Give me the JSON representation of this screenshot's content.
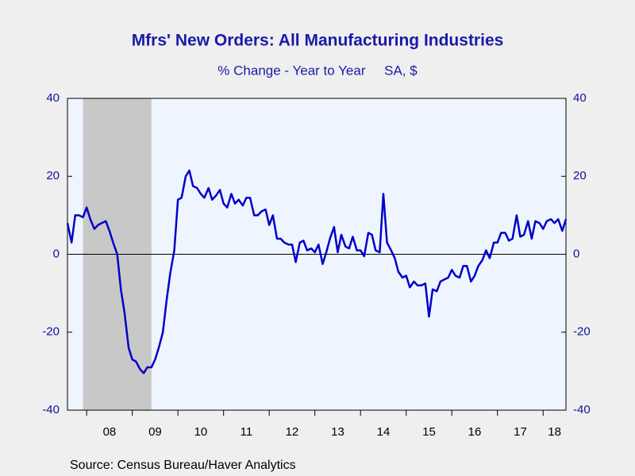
{
  "chart_data": {
    "type": "line",
    "title": "Mfrs' New Orders: All Manufacturing Industries",
    "subtitle": "% Change - Year to Year     SA, $",
    "source": "Source:  Census Bureau/Haver Analytics",
    "xlim": [
      2007.58,
      2018.5
    ],
    "ylim": [
      -40,
      40
    ],
    "yticks": [
      40,
      20,
      0,
      -20,
      -40
    ],
    "y2lim": [
      -40,
      40
    ],
    "y2ticks": [
      40,
      20,
      0,
      -20,
      -40
    ],
    "xticks": [
      {
        "value": 2008,
        "label": "08"
      },
      {
        "value": 2009,
        "label": "09"
      },
      {
        "value": 2010,
        "label": "10"
      },
      {
        "value": 2011,
        "label": "11"
      },
      {
        "value": 2012,
        "label": "12"
      },
      {
        "value": 2013,
        "label": "13"
      },
      {
        "value": 2014,
        "label": "14"
      },
      {
        "value": 2015,
        "label": "15"
      },
      {
        "value": 2016,
        "label": "16"
      },
      {
        "value": 2017,
        "label": "17"
      },
      {
        "value": 2018,
        "label": "18"
      }
    ],
    "recessions": [
      [
        2007.92,
        2009.42
      ]
    ],
    "recession_color": "#c8c8c8",
    "plot_background": "#eef5ff",
    "x": [
      2007.58,
      2007.67,
      2007.75,
      2007.83,
      2007.92,
      2008.0,
      2008.08,
      2008.17,
      2008.25,
      2008.33,
      2008.42,
      2008.5,
      2008.58,
      2008.67,
      2008.75,
      2008.83,
      2008.92,
      2009.0,
      2009.08,
      2009.17,
      2009.25,
      2009.33,
      2009.42,
      2009.5,
      2009.58,
      2009.67,
      2009.75,
      2009.83,
      2009.92,
      2010.0,
      2010.08,
      2010.17,
      2010.25,
      2010.33,
      2010.42,
      2010.5,
      2010.58,
      2010.67,
      2010.75,
      2010.83,
      2010.92,
      2011.0,
      2011.08,
      2011.17,
      2011.25,
      2011.33,
      2011.42,
      2011.5,
      2011.58,
      2011.67,
      2011.75,
      2011.83,
      2011.92,
      2012.0,
      2012.08,
      2012.17,
      2012.25,
      2012.33,
      2012.42,
      2012.5,
      2012.58,
      2012.67,
      2012.75,
      2012.83,
      2012.92,
      2013.0,
      2013.08,
      2013.17,
      2013.25,
      2013.33,
      2013.42,
      2013.5,
      2013.58,
      2013.67,
      2013.75,
      2013.83,
      2013.92,
      2014.0,
      2014.08,
      2014.17,
      2014.25,
      2014.33,
      2014.42,
      2014.5,
      2014.58,
      2014.67,
      2014.75,
      2014.83,
      2014.92,
      2015.0,
      2015.08,
      2015.17,
      2015.25,
      2015.33,
      2015.42,
      2015.5,
      2015.58,
      2015.67,
      2015.75,
      2015.83,
      2015.92,
      2016.0,
      2016.08,
      2016.17,
      2016.25,
      2016.33,
      2016.42,
      2016.5,
      2016.58,
      2016.67,
      2016.75,
      2016.83,
      2016.92,
      2017.0,
      2017.08,
      2017.17,
      2017.25,
      2017.33,
      2017.42,
      2017.5,
      2017.58,
      2017.67,
      2017.75,
      2017.83,
      2017.92,
      2018.0,
      2018.08,
      2018.17,
      2018.25,
      2018.33,
      2018.42,
      2018.5
    ],
    "series": [
      {
        "color": "#0000c8",
        "values": [
          8,
          3,
          10,
          10,
          9.5,
          12,
          9,
          6.5,
          7.5,
          8,
          8.5,
          6,
          3,
          0,
          -9,
          -15,
          -24,
          -27,
          -27.5,
          -29.5,
          -30.5,
          -29,
          -29,
          -27,
          -24,
          -20,
          -12,
          -5,
          1,
          14,
          14.5,
          20,
          21.5,
          17.5,
          17,
          15.5,
          14.5,
          17,
          14,
          15,
          16.5,
          13,
          12,
          15.5,
          13,
          14,
          12.5,
          14.5,
          14.5,
          10,
          10,
          11,
          11.5,
          7.5,
          10,
          4,
          4,
          3,
          2.5,
          2.5,
          -2,
          3,
          3.5,
          1,
          1.5,
          0.5,
          2.5,
          -2.5,
          0.5,
          4,
          7,
          0.5,
          5,
          2,
          1.5,
          4.5,
          1,
          1,
          -0.5,
          5.5,
          5,
          1,
          0.5,
          15.5,
          3,
          1,
          -1,
          -4.5,
          -6,
          -5.5,
          -8.5,
          -7,
          -8,
          -8,
          -7.5,
          -16,
          -9,
          -9.5,
          -7,
          -6.5,
          -6,
          -4,
          -5.5,
          -6,
          -3,
          -3,
          -7,
          -5.5,
          -3,
          -1.5,
          1,
          -1,
          3,
          3,
          5.5,
          5.5,
          3.5,
          4,
          10,
          4.5,
          5,
          8.5,
          4,
          8.5,
          8,
          6.5,
          8.5,
          9,
          8,
          9,
          6,
          9
        ]
      }
    ]
  }
}
